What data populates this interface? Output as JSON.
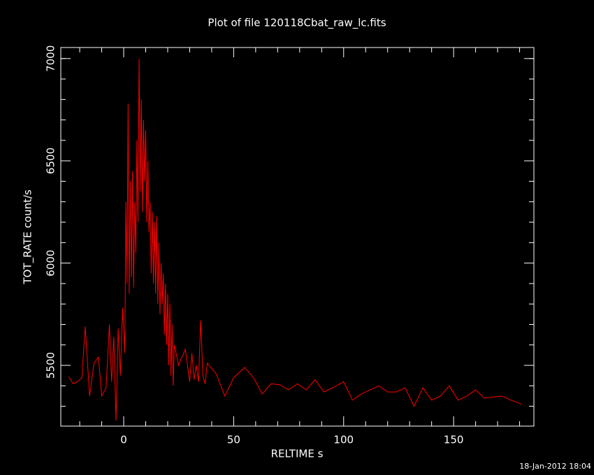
{
  "chart_data": {
    "type": "line",
    "title": "Plot of file 120118Cbat_raw_lc.fits",
    "x_label": "RELTIME  s",
    "y_label": "TOT_RATE  count/s",
    "timestamp": "18-Jan-2012 18:04",
    "xlim": [
      -28.6,
      186.5
    ],
    "ylim": [
      5203,
      7054
    ],
    "xticks": [
      0,
      50,
      100,
      150
    ],
    "yticks": [
      5500,
      6000,
      6500,
      7000
    ],
    "xminorticks": [
      -20,
      -10,
      10,
      20,
      30,
      40,
      60,
      70,
      80,
      90,
      110,
      120,
      130,
      140,
      160,
      170,
      180
    ],
    "yminorticks": [
      5300,
      5400,
      5600,
      5700,
      5800,
      5900,
      6100,
      6200,
      6300,
      6400,
      6600,
      6700,
      6800,
      6900,
      7000
    ],
    "color": "#ff0000",
    "x": [
      -25,
      -23,
      -21,
      -19,
      -17.5,
      -15.5,
      -13.5,
      -11.5,
      -10,
      -8,
      -6.5,
      -5.5,
      -4.5,
      -3.5,
      -2.5,
      -1.5,
      -0.5,
      0.5,
      1,
      1.5,
      2,
      2.5,
      3,
      3.5,
      4,
      4.5,
      5,
      5.5,
      6,
      6.5,
      7,
      7.5,
      8,
      8.5,
      9,
      9.5,
      10,
      10.5,
      11,
      11.5,
      12,
      12.5,
      13,
      13.5,
      14,
      14.5,
      15,
      15.5,
      16,
      16.5,
      17,
      17.5,
      18,
      18.5,
      19,
      19.5,
      20,
      20.5,
      21,
      21.5,
      22,
      22.5,
      23,
      24,
      25,
      26,
      27,
      28,
      29,
      30,
      31,
      32,
      33,
      34,
      35,
      36,
      37,
      38,
      42,
      46,
      50,
      55,
      59,
      63,
      67,
      71,
      75,
      79,
      83,
      87,
      91,
      95,
      100,
      104,
      108,
      112,
      116,
      120,
      124,
      128,
      132,
      136,
      140,
      144,
      148,
      152,
      156,
      160,
      164,
      168,
      172,
      176,
      181
    ],
    "values": [
      5445,
      5410,
      5420,
      5440,
      5690,
      5350,
      5510,
      5540,
      5350,
      5390,
      5700,
      5420,
      5640,
      5230,
      5680,
      5450,
      5780,
      5560,
      6300,
      5900,
      6780,
      5850,
      6400,
      5930,
      6450,
      5880,
      6300,
      6050,
      6600,
      6200,
      7000,
      6350,
      6800,
      6250,
      6700,
      6400,
      6650,
      6200,
      6500,
      6150,
      6300,
      5950,
      6250,
      5900,
      6200,
      5850,
      6230,
      5800,
      6100,
      5750,
      6000,
      5800,
      5950,
      5650,
      5900,
      5600,
      5850,
      5500,
      5800,
      5450,
      5700,
      5400,
      5600,
      5550,
      5500,
      5530,
      5550,
      5580,
      5500,
      5420,
      5560,
      5430,
      5500,
      5420,
      5720,
      5450,
      5410,
      5510,
      5460,
      5350,
      5440,
      5490,
      5440,
      5360,
      5410,
      5405,
      5380,
      5410,
      5380,
      5430,
      5370,
      5390,
      5420,
      5330,
      5360,
      5380,
      5400,
      5370,
      5370,
      5390,
      5300,
      5390,
      5330,
      5350,
      5400,
      5330,
      5350,
      5380,
      5340,
      5345,
      5350,
      5330,
      5310
    ]
  }
}
